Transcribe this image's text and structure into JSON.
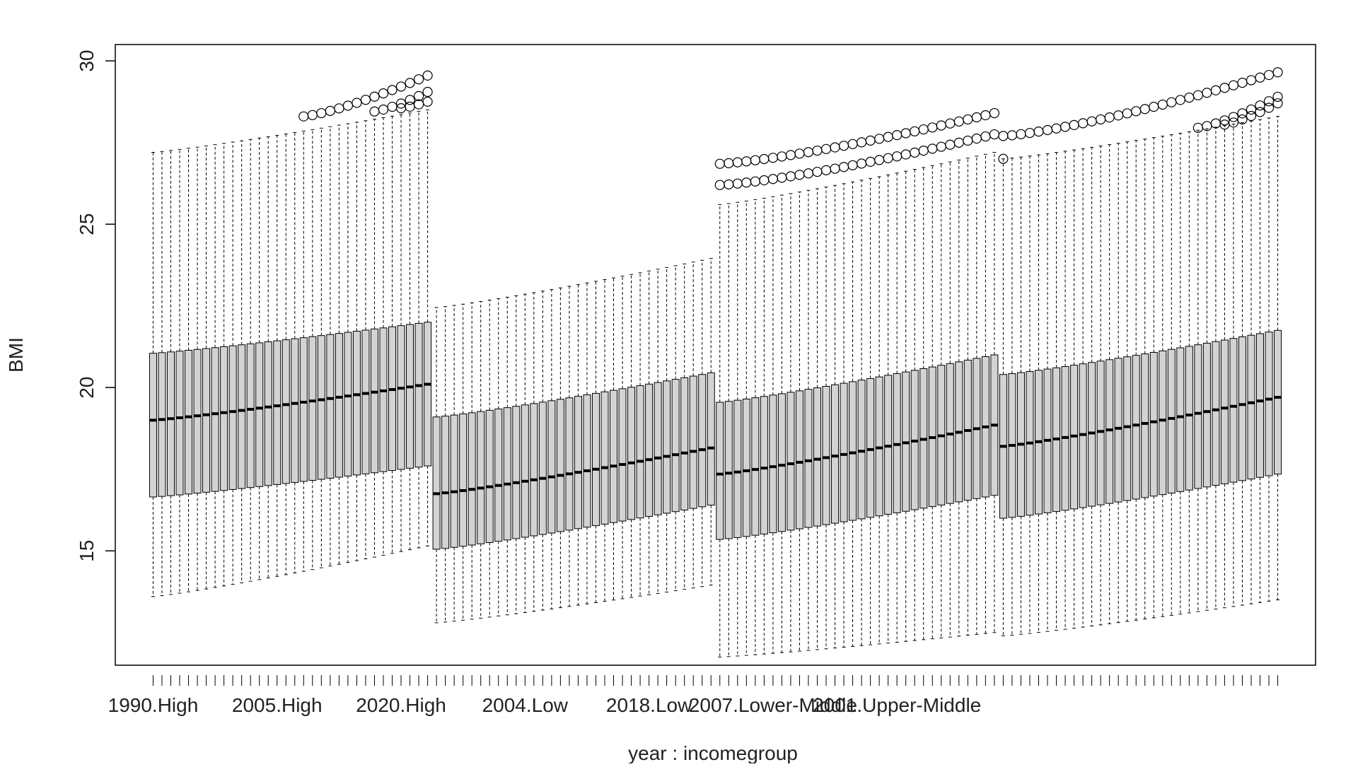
{
  "chart_data": {
    "type": "boxplot",
    "title": "",
    "xlabel": "year : incomegroup",
    "ylabel": "BMI",
    "ylim": [
      11.5,
      30.5
    ],
    "yticks": [
      15,
      20,
      25,
      30
    ],
    "grid": false,
    "legend": "none",
    "x_tick_labels_shown": [
      "1990.High",
      "2005.High",
      "2020.High",
      "2004.Low",
      "2018.Low",
      "2007.Lower-Middle",
      "2001.Upper-Middle"
    ],
    "label_every": 14,
    "years": [
      1990,
      2021
    ],
    "box_fill": "#d3d3d3",
    "groups": [
      {
        "name": "High",
        "q1": [
          16.65,
          17.6
        ],
        "median": [
          19.0,
          20.1
        ],
        "q3": [
          21.05,
          22.0
        ],
        "whisker_low": [
          13.6,
          15.15
        ],
        "whisker_high": [
          27.2,
          28.5
        ],
        "outliers": [
          {
            "from_year": 2007,
            "start": 28.3,
            "end": 29.55
          },
          {
            "from_year": 2015,
            "start": 28.45,
            "end": 29.05
          },
          {
            "from_year": 2018,
            "start": 28.55,
            "end": 28.75
          }
        ]
      },
      {
        "name": "Low",
        "q1": [
          15.05,
          16.4
        ],
        "median": [
          16.75,
          18.15
        ],
        "q3": [
          19.1,
          20.45
        ],
        "whisker_low": [
          12.8,
          13.95
        ],
        "whisker_high": [
          22.45,
          23.95
        ],
        "outliers": []
      },
      {
        "name": "Lower-Middle",
        "q1": [
          15.35,
          16.7
        ],
        "median": [
          17.35,
          18.85
        ],
        "q3": [
          19.55,
          21.0
        ],
        "whisker_low": [
          11.75,
          12.5
        ],
        "whisker_high": [
          25.6,
          27.2
        ],
        "outliers": [
          {
            "from_year": 1990,
            "start": 26.85,
            "end": 28.4
          },
          {
            "from_year": 1990,
            "start": 26.2,
            "end": 27.75
          }
        ]
      },
      {
        "name": "Upper-Middle",
        "q1": [
          16.0,
          17.35
        ],
        "median": [
          18.2,
          19.7
        ],
        "q3": [
          20.4,
          21.75
        ],
        "whisker_low": [
          12.4,
          13.5
        ],
        "whisker_high": [
          27.0,
          28.3
        ],
        "outliers": [
          {
            "from_year": 1990,
            "start": 27.7,
            "end": 29.65
          },
          {
            "from_year": 2012,
            "start": 27.95,
            "end": 28.9
          },
          {
            "from_year": 2015,
            "start": 28.05,
            "end": 28.7
          },
          {
            "from_year": 1990,
            "start": 27.0,
            "end": 27.0,
            "count": 1
          }
        ]
      }
    ]
  }
}
